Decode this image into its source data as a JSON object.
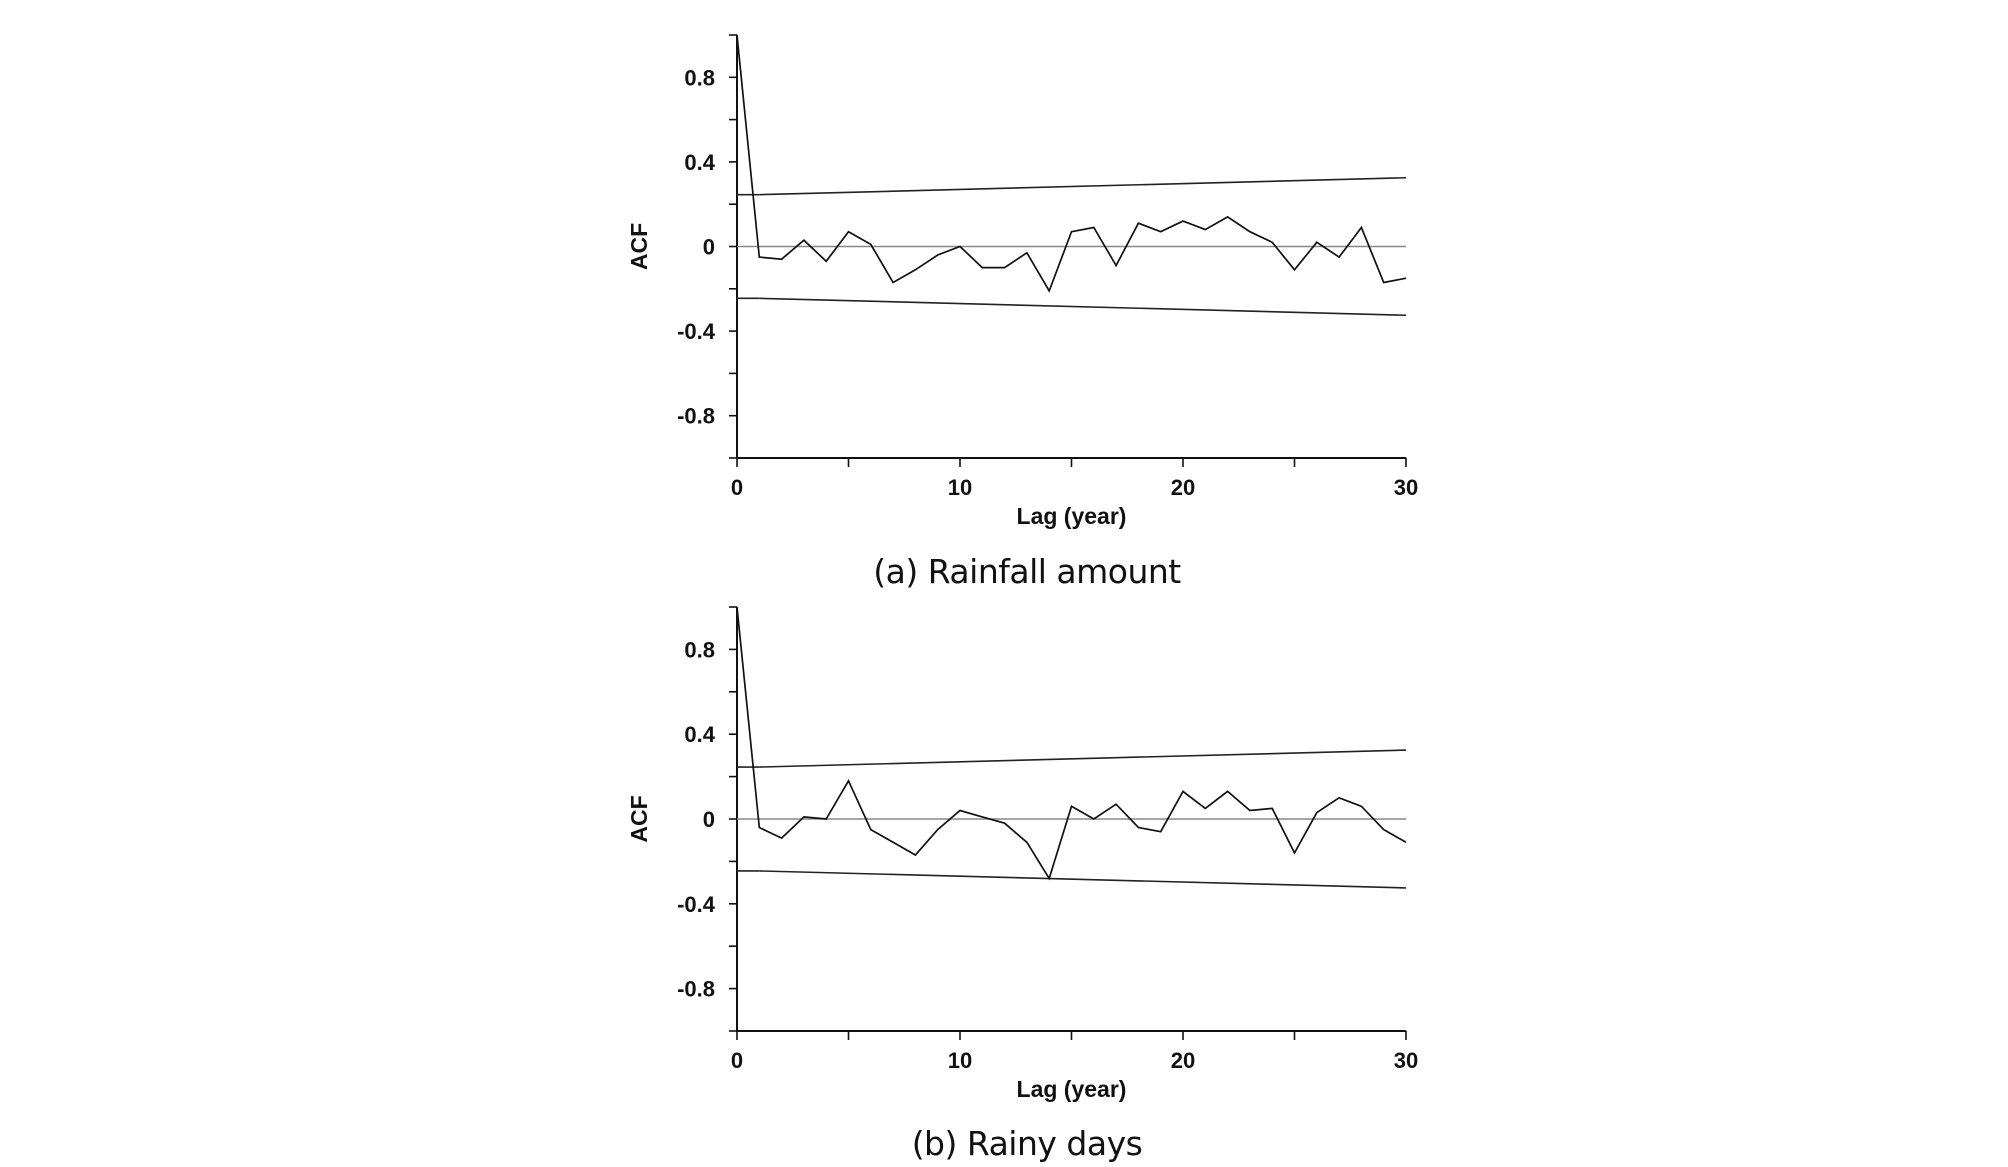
{
  "chart_data": [
    {
      "type": "line",
      "id": "a",
      "caption": "(a) Rainfall amount",
      "xlabel": "Lag (year)",
      "ylabel": "ACF",
      "xlim": [
        0,
        30
      ],
      "ylim": [
        -1,
        1
      ],
      "xticks": [
        0,
        10,
        20,
        30
      ],
      "xtick_labels": [
        "0",
        "10",
        "20",
        "30"
      ],
      "yticks": [
        0.8,
        0.4,
        0,
        -0.4,
        -0.8
      ],
      "ytick_labels": [
        "0.8",
        "0.4",
        "0",
        "-0.4",
        "-0.8"
      ],
      "x": [
        0,
        1,
        2,
        3,
        4,
        5,
        6,
        7,
        8,
        9,
        10,
        11,
        12,
        13,
        14,
        15,
        16,
        17,
        18,
        19,
        20,
        21,
        22,
        23,
        24,
        25,
        26,
        27,
        28,
        29,
        30
      ],
      "values": [
        1.0,
        -0.05,
        -0.06,
        0.03,
        -0.07,
        0.07,
        0.01,
        -0.17,
        -0.11,
        -0.04,
        0.0,
        -0.1,
        -0.1,
        -0.03,
        -0.21,
        0.07,
        0.09,
        -0.09,
        0.11,
        0.07,
        0.12,
        0.08,
        0.14,
        0.07,
        0.02,
        -0.11,
        0.02,
        -0.05,
        0.09,
        -0.17,
        -0.15
      ],
      "confidence_upper": [
        [
          1,
          0.245
        ],
        [
          30,
          0.325
        ]
      ],
      "confidence_lower": [
        [
          1,
          -0.245
        ],
        [
          30,
          -0.325
        ]
      ]
    },
    {
      "type": "line",
      "id": "b",
      "caption": "(b) Rainy days",
      "xlabel": "Lag (year)",
      "ylabel": "ACF",
      "xlim": [
        0,
        30
      ],
      "ylim": [
        -1,
        1
      ],
      "xticks": [
        0,
        10,
        20,
        30
      ],
      "xtick_labels": [
        "0",
        "10",
        "20",
        "30"
      ],
      "yticks": [
        0.8,
        0.4,
        0,
        -0.4,
        -0.8
      ],
      "ytick_labels": [
        "0.8",
        "0.4",
        "0",
        "-0.4",
        "-0.8"
      ],
      "x": [
        0,
        1,
        2,
        3,
        4,
        5,
        6,
        7,
        8,
        9,
        10,
        11,
        12,
        13,
        14,
        15,
        16,
        17,
        18,
        19,
        20,
        21,
        22,
        23,
        24,
        25,
        26,
        27,
        28,
        29,
        30
      ],
      "values": [
        1.0,
        -0.04,
        -0.09,
        0.01,
        0.0,
        0.18,
        -0.05,
        -0.11,
        -0.17,
        -0.05,
        0.04,
        0.01,
        -0.02,
        -0.11,
        -0.28,
        0.06,
        0.0,
        0.07,
        -0.04,
        -0.06,
        0.13,
        0.05,
        0.13,
        0.04,
        0.05,
        -0.16,
        0.03,
        0.1,
        0.06,
        -0.05,
        -0.11
      ],
      "confidence_upper": [
        [
          1,
          0.245
        ],
        [
          30,
          0.325
        ]
      ],
      "confidence_lower": [
        [
          1,
          -0.245
        ],
        [
          30,
          -0.325
        ]
      ]
    }
  ]
}
